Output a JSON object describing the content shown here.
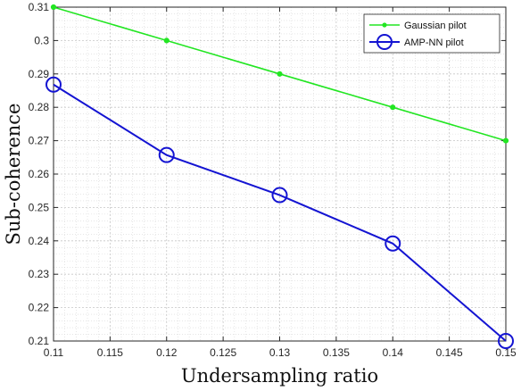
{
  "chart_data": {
    "type": "line",
    "xlabel": "Undersampling ratio",
    "ylabel": "Sub-coherence",
    "xlim": [
      0.11,
      0.15
    ],
    "ylim": [
      0.21,
      0.31
    ],
    "xticks": [
      0.11,
      0.115,
      0.12,
      0.125,
      0.13,
      0.135,
      0.14,
      0.145,
      0.15
    ],
    "xtick_labels": [
      "0.11",
      "0.115",
      "0.12",
      "0.125",
      "0.13",
      "0.135",
      "0.14",
      "0.145",
      "0.15"
    ],
    "yticks": [
      0.21,
      0.22,
      0.23,
      0.24,
      0.25,
      0.26,
      0.27,
      0.28,
      0.29,
      0.3,
      0.31
    ],
    "ytick_labels": [
      "0.21",
      "0.22",
      "0.23",
      "0.24",
      "0.25",
      "0.26",
      "0.27",
      "0.28",
      "0.29",
      "0.3",
      "0.31"
    ],
    "grid": true,
    "minor_grid": true,
    "legend_position": "top-right",
    "x": [
      0.11,
      0.12,
      0.13,
      0.14,
      0.15
    ],
    "series": [
      {
        "name": "Gaussian pilot",
        "values": [
          0.31,
          0.3,
          0.29,
          0.28,
          0.27
        ],
        "color": "#22e622",
        "marker": "dot"
      },
      {
        "name": "AMP-NN pilot",
        "values": [
          0.2868,
          0.2657,
          0.2537,
          0.2392,
          0.21
        ],
        "color": "#1414d2",
        "marker": "circle"
      }
    ]
  }
}
